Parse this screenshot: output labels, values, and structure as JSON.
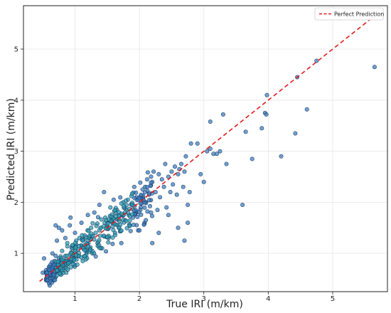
{
  "chart_data": {
    "type": "scatter",
    "title": "",
    "xlabel": "True IRI (m/km)",
    "ylabel": "Predicted IRI (m/km)",
    "xlim": [
      0.2,
      5.85
    ],
    "ylim": [
      0.25,
      5.85
    ],
    "xticks": [
      1,
      2,
      3,
      4,
      5
    ],
    "yticks": [
      1,
      2,
      3,
      4,
      5
    ],
    "grid": true,
    "legend_position": "top-right",
    "colors": {
      "point_fill": "#3a7dc0",
      "point_edge": "#1f3f66",
      "dense_fill": "#2aa0b0",
      "perfect_line": "#e31a1c",
      "grid": "#e6e6e6",
      "axes": "#222222"
    },
    "series": [
      {
        "name": "Perfect Prediction",
        "kind": "line",
        "style": "dashed",
        "x": [
          0.45,
          5.7
        ],
        "y": [
          0.45,
          5.7
        ]
      },
      {
        "kind": "scatter",
        "points": [
          [
            0.5,
            0.62
          ],
          [
            0.52,
            0.9
          ],
          [
            0.55,
            0.67
          ],
          [
            0.56,
            0.6
          ],
          [
            0.58,
            0.55
          ],
          [
            0.6,
            0.74
          ],
          [
            0.62,
            0.5
          ],
          [
            0.63,
            0.72
          ],
          [
            0.65,
            1.0
          ],
          [
            0.66,
            0.8
          ],
          [
            0.68,
            0.62
          ],
          [
            0.7,
            0.95
          ],
          [
            0.7,
            1.55
          ],
          [
            0.72,
            0.75
          ],
          [
            0.72,
            1.25
          ],
          [
            0.75,
            0.9
          ],
          [
            0.75,
            1.5
          ],
          [
            0.78,
            0.8
          ],
          [
            0.8,
            1.45
          ],
          [
            0.8,
            1.05
          ],
          [
            0.82,
            0.7
          ],
          [
            0.85,
            1.3
          ],
          [
            0.85,
            0.95
          ],
          [
            0.88,
            1.2
          ],
          [
            0.9,
            0.85
          ],
          [
            0.92,
            1.55
          ],
          [
            0.93,
            1.7
          ],
          [
            0.95,
            1.1
          ],
          [
            0.97,
            0.9
          ],
          [
            1.0,
            1.4
          ],
          [
            1.0,
            1.0
          ],
          [
            1.02,
            1.25
          ],
          [
            1.05,
            0.95
          ],
          [
            1.07,
            1.3
          ],
          [
            1.1,
            1.15
          ],
          [
            1.1,
            1.6
          ],
          [
            1.12,
            0.85
          ],
          [
            1.15,
            1.35
          ],
          [
            1.18,
            1.05
          ],
          [
            1.2,
            1.75
          ],
          [
            1.22,
            1.3
          ],
          [
            1.25,
            1.5
          ],
          [
            1.27,
            1.0
          ],
          [
            1.3,
            1.8
          ],
          [
            1.32,
            1.4
          ],
          [
            1.35,
            1.2
          ],
          [
            1.38,
            1.95
          ],
          [
            1.4,
            1.5
          ],
          [
            1.42,
            1.1
          ],
          [
            1.45,
            2.2
          ],
          [
            1.47,
            1.7
          ],
          [
            1.5,
            1.55
          ],
          [
            1.52,
            1.3
          ],
          [
            1.55,
            1.9
          ],
          [
            1.58,
            1.6
          ],
          [
            1.6,
            2.05
          ],
          [
            1.62,
            1.4
          ],
          [
            1.65,
            1.85
          ],
          [
            1.68,
            1.5
          ],
          [
            1.7,
            1.75
          ],
          [
            1.72,
            1.2
          ],
          [
            1.75,
            2.0
          ],
          [
            1.78,
            1.65
          ],
          [
            1.8,
            1.85
          ],
          [
            1.82,
            2.05
          ],
          [
            1.85,
            1.55
          ],
          [
            1.88,
            1.95
          ],
          [
            1.9,
            1.7
          ],
          [
            1.92,
            2.3
          ],
          [
            1.95,
            1.8
          ],
          [
            1.98,
            1.45
          ],
          [
            2.0,
            2.1
          ],
          [
            2.02,
            1.9
          ],
          [
            2.05,
            2.25
          ],
          [
            2.08,
            1.6
          ],
          [
            2.1,
            2.0
          ],
          [
            2.12,
            2.45
          ],
          [
            2.15,
            2.15
          ],
          [
            2.18,
            1.8
          ],
          [
            2.2,
            2.4
          ],
          [
            2.22,
            2.6
          ],
          [
            2.25,
            2.2
          ],
          [
            2.28,
            1.85
          ],
          [
            2.3,
            2.55
          ],
          [
            2.32,
            2.1
          ],
          [
            2.35,
            2.45
          ],
          [
            2.38,
            2.3
          ],
          [
            2.4,
            2.75
          ],
          [
            2.42,
            1.9
          ],
          [
            2.45,
            2.5
          ],
          [
            2.48,
            2.2
          ],
          [
            2.5,
            2.6
          ],
          [
            2.52,
            2.35
          ],
          [
            2.55,
            2.7
          ],
          [
            2.58,
            2.15
          ],
          [
            2.6,
            2.55
          ],
          [
            2.62,
            2.65
          ],
          [
            2.65,
            2.75
          ],
          [
            2.68,
            2.3
          ],
          [
            2.7,
            2.6
          ],
          [
            2.72,
            2.9
          ],
          [
            2.75,
            1.95
          ],
          [
            2.78,
            2.2
          ],
          [
            2.2,
            1.2
          ],
          [
            2.3,
            1.4
          ],
          [
            2.1,
            1.65
          ],
          [
            2.0,
            1.45
          ],
          [
            2.6,
            1.5
          ],
          [
            2.7,
            1.25
          ],
          [
            2.75,
            1.6
          ],
          [
            2.45,
            1.75
          ],
          [
            2.8,
            3.15
          ],
          [
            2.9,
            3.15
          ],
          [
            2.95,
            2.55
          ],
          [
            3.05,
            3.0
          ],
          [
            3.1,
            3.05
          ],
          [
            3.15,
            2.95
          ],
          [
            3.2,
            2.95
          ],
          [
            3.25,
            3.0
          ],
          [
            3.0,
            2.4
          ],
          [
            3.1,
            3.58
          ],
          [
            3.3,
            3.72
          ],
          [
            3.35,
            2.75
          ],
          [
            3.6,
            1.95
          ],
          [
            3.65,
            3.38
          ],
          [
            3.75,
            2.85
          ],
          [
            3.9,
            3.45
          ],
          [
            3.95,
            3.75
          ],
          [
            3.97,
            3.72
          ],
          [
            3.98,
            4.1
          ],
          [
            4.2,
            2.9
          ],
          [
            4.42,
            3.35
          ],
          [
            4.45,
            4.45
          ],
          [
            4.6,
            3.82
          ],
          [
            4.75,
            4.77
          ],
          [
            5.65,
            4.65
          ]
        ],
        "dense_band": "x from 0.5 to 2.2 along the diagonal, most points concentrated between x=0.8 and x=1.9"
      }
    ]
  }
}
